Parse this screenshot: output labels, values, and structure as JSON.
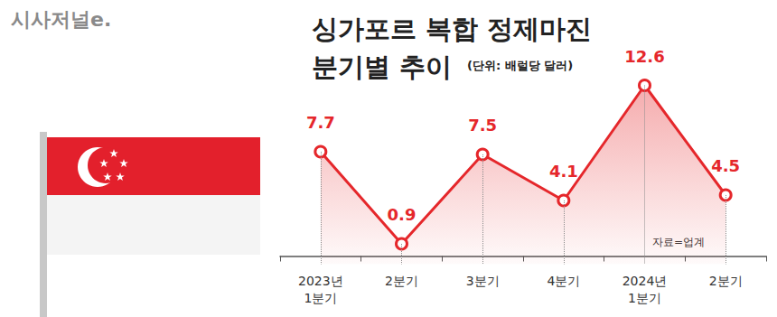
{
  "chart_data": {
    "type": "line",
    "title": "싱가포르 복합 정제마진\n분기별 추이",
    "subtitle": "(단위: 배럴당 달러)",
    "source": "자료=업계",
    "credit": "시사저널e.",
    "categories": [
      "2023년\n1분기",
      "2분기",
      "3분기",
      "4분기",
      "2024년\n1분기",
      "2분기"
    ],
    "values": [
      7.7,
      0.9,
      7.5,
      4.1,
      12.6,
      4.5
    ],
    "color": "#e5272b",
    "ylim": [
      -0.6,
      14
    ],
    "data_labels": true,
    "tick_labels": "x",
    "grid": false,
    "marker": "circle"
  }
}
